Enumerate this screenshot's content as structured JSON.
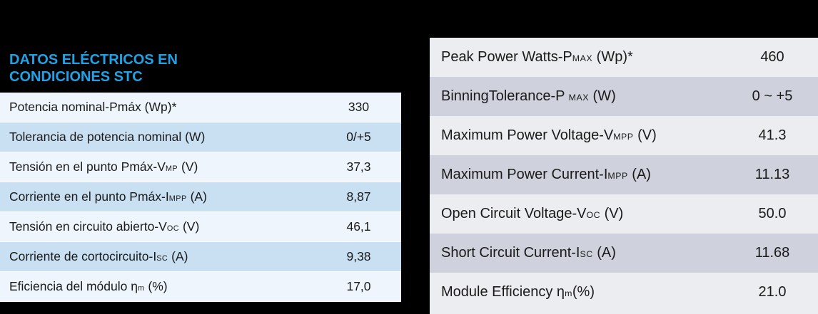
{
  "left": {
    "title_line1": "DATOS ELÉCTRICOS EN",
    "title_line2": "CONDICIONES STC",
    "rows": [
      {
        "pre": "Potencia nominal-Pmáx (Wp)*",
        "sub": "",
        "post": "",
        "value": "330"
      },
      {
        "pre": "Tolerancia de potencia nominal (W)",
        "sub": "",
        "post": "",
        "value": "0/+5"
      },
      {
        "pre": "Tensión en el punto Pmáx-V",
        "sub": "MP",
        "post": " (V)",
        "value": "37,3"
      },
      {
        "pre": "Corriente en el punto Pmáx-I",
        "sub": "MPP",
        "post": " (A)",
        "value": "8,87"
      },
      {
        "pre": "Tensión en circuito abierto-V",
        "sub": "OC",
        "post": " (V)",
        "value": "46,1"
      },
      {
        "pre": "Corriente de cortocircuito-I",
        "sub": "SC",
        "post": " (A)",
        "value": "9,38"
      },
      {
        "pre": "Eficiencia del módulo η",
        "sub": "m",
        "post": " (%)",
        "value": "17,0"
      }
    ]
  },
  "right": {
    "rows": [
      {
        "pre": "Peak Power Watts-P",
        "sub": "MAX",
        "post": " (Wp)*",
        "value": "460"
      },
      {
        "pre": "BinningTolerance-P ",
        "sub": "MAX",
        "post": " (W)",
        "value": "0 ~ +5"
      },
      {
        "pre": "Maximum Power Voltage-V",
        "sub": "MPP",
        "post": " (V)",
        "value": "41.3"
      },
      {
        "pre": "Maximum Power Current-I",
        "sub": "MPP",
        "post": " (A)",
        "value": "11.13"
      },
      {
        "pre": "Open Circuit Voltage-V",
        "sub": "OC",
        "post": " (V)",
        "value": "50.0"
      },
      {
        "pre": "Short Circuit Current-I",
        "sub": "SC",
        "post": " (A)",
        "value": "11.68"
      },
      {
        "pre": "Module Efficiency  η",
        "sub": "m",
        "post": "(%)",
        "value": "21.0"
      }
    ]
  }
}
